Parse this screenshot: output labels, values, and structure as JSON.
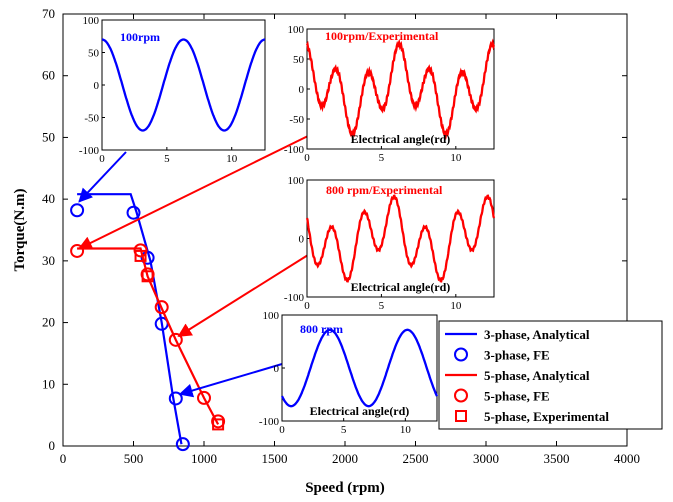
{
  "chart_data": {
    "type": "line",
    "xlabel": "Speed (rpm)",
    "ylabel": "Torque(N.m)",
    "xlim": [
      0,
      4000
    ],
    "ylim": [
      0,
      70
    ],
    "xticks": [
      0,
      500,
      1000,
      1500,
      2000,
      2500,
      3000,
      3500,
      4000
    ],
    "yticks": [
      0,
      10,
      20,
      30,
      40,
      50,
      60,
      70
    ],
    "legend_position": "bottom-right",
    "colors": {
      "three_phase": "#0000FF",
      "five_phase": "#FF0000"
    },
    "series": [
      {
        "name": "3-phase, Analytical",
        "style": "line",
        "color": "#0000FF",
        "x": [
          100,
          480,
          520,
          620,
          700,
          780,
          840
        ],
        "y": [
          40.8,
          40.8,
          38,
          30,
          20,
          8,
          0.3
        ]
      },
      {
        "name": "3-phase, FE",
        "style": "circle",
        "color": "#0000FF",
        "x": [
          100,
          500,
          600,
          700,
          800,
          850
        ],
        "y": [
          38.2,
          37.8,
          30.5,
          19.8,
          7.7,
          0.3
        ]
      },
      {
        "name": "5-phase, Analytical",
        "style": "line",
        "color": "#FF0000",
        "x": [
          100,
          550,
          600,
          700,
          800,
          1000,
          1100
        ],
        "y": [
          32,
          32,
          27.5,
          22.3,
          17.2,
          7.8,
          3.5
        ]
      },
      {
        "name": "5-phase, FE",
        "style": "circle",
        "color": "#FF0000",
        "x": [
          100,
          550,
          600,
          700,
          800,
          1000,
          1100
        ],
        "y": [
          31.6,
          31.7,
          27.8,
          22.5,
          17.2,
          7.8,
          4.0
        ]
      },
      {
        "name": "5-phase, Experimental",
        "style": "square",
        "color": "#FF0000",
        "x": [
          550,
          600,
          1100
        ],
        "y": [
          30.8,
          27.5,
          3.5
        ]
      }
    ],
    "insets": [
      {
        "title": "100rpm",
        "color": "#0000FF",
        "xlabel": "",
        "xlim": [
          0,
          12.566
        ],
        "ylim": [
          -100,
          100
        ],
        "xticks": [
          0,
          5,
          10
        ],
        "yticks": [
          100,
          50,
          0,
          -50,
          -100
        ]
      },
      {
        "title": "100rpm/Experimental",
        "color": "#FF0000",
        "xlabel": "Electrical angle(rd)",
        "xlim": [
          0,
          12.566
        ],
        "ylim": [
          -100,
          100
        ],
        "xticks": [
          0,
          5,
          10
        ],
        "yticks": [
          100,
          50,
          0,
          -50,
          -100
        ]
      },
      {
        "title": "800 rpm/Experimental",
        "color": "#FF0000",
        "xlabel": "Electrical angle(rd)",
        "xlim": [
          0,
          12.566
        ],
        "ylim": [
          -100,
          100
        ],
        "xticks": [
          0,
          5,
          10
        ],
        "yticks": [
          100,
          0,
          -100
        ]
      },
      {
        "title": "800 rpm",
        "color": "#0000FF",
        "xlabel": "Electrical angle(rd)",
        "xlim": [
          0,
          12.566
        ],
        "ylim": [
          -100,
          100
        ],
        "xticks": [
          0,
          5,
          10
        ],
        "yticks": [
          100,
          0,
          -100
        ]
      }
    ],
    "legend": [
      "3-phase, Analytical",
      "3-phase, FE",
      "5-phase, Analytical",
      "5-phase, FE",
      "5-phase, Experimental"
    ]
  }
}
